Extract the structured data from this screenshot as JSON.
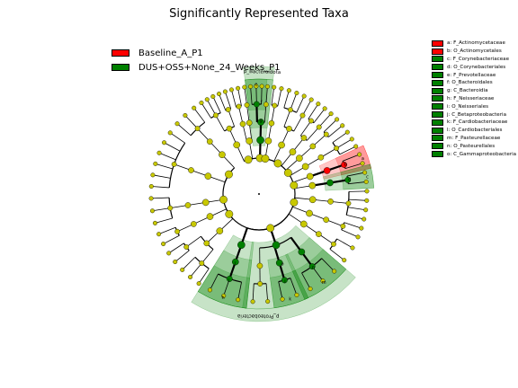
{
  "chart_data": {
    "type": "cladogram",
    "title": "Significantly Represented Taxa",
    "classes": [
      {
        "name": "Baseline_A_P1",
        "color": "#ff0000"
      },
      {
        "name": "DUS+OSS+None_24_Weeks_P1",
        "color": "#008000"
      }
    ],
    "taxa": [
      {
        "letter": "a",
        "label": "a: F_Actinomycetaceae",
        "class": "Baseline_A_P1"
      },
      {
        "letter": "b",
        "label": "b: O_Actinomycetales",
        "class": "Baseline_A_P1"
      },
      {
        "letter": "c",
        "label": "c: F_Corynebacteriaceae",
        "class": "DUS+OSS+None_24_Weeks_P1"
      },
      {
        "letter": "d",
        "label": "d: O_Corynebacteriales",
        "class": "DUS+OSS+None_24_Weeks_P1"
      },
      {
        "letter": "e",
        "label": "e: F_Prevotellaceae",
        "class": "DUS+OSS+None_24_Weeks_P1"
      },
      {
        "letter": "f",
        "label": "f: O_Bacteroidales",
        "class": "DUS+OSS+None_24_Weeks_P1"
      },
      {
        "letter": "g",
        "label": "g: C_Bacteroidia",
        "class": "DUS+OSS+None_24_Weeks_P1"
      },
      {
        "letter": "h",
        "label": "h: F_Neisseriaceae",
        "class": "DUS+OSS+None_24_Weeks_P1"
      },
      {
        "letter": "i",
        "label": "i: O_Neisseriales",
        "class": "DUS+OSS+None_24_Weeks_P1"
      },
      {
        "letter": "j",
        "label": "j: C_Betaproteobacteria",
        "class": "DUS+OSS+None_24_Weeks_P1"
      },
      {
        "letter": "k",
        "label": "k: F_Cardiobacteriaceae",
        "class": "DUS+OSS+None_24_Weeks_P1"
      },
      {
        "letter": "l",
        "label": "l: O_Cardiobacteriales",
        "class": "DUS+OSS+None_24_Weeks_P1"
      },
      {
        "letter": "m",
        "label": "m: F_Pasteurellaceae",
        "class": "DUS+OSS+None_24_Weeks_P1"
      },
      {
        "letter": "n",
        "label": "n: O_Pasteurellales",
        "class": "DUS+OSS+None_24_Weeks_P1"
      },
      {
        "letter": "o",
        "label": "o: C_Gammaproteobacteria",
        "class": "DUS+OSS+None_24_Weeks_P1"
      }
    ],
    "phylum_labels": [
      "p_Bacteroidota",
      "p_Proteobacteria"
    ],
    "node_color_default": "#c8c800"
  }
}
